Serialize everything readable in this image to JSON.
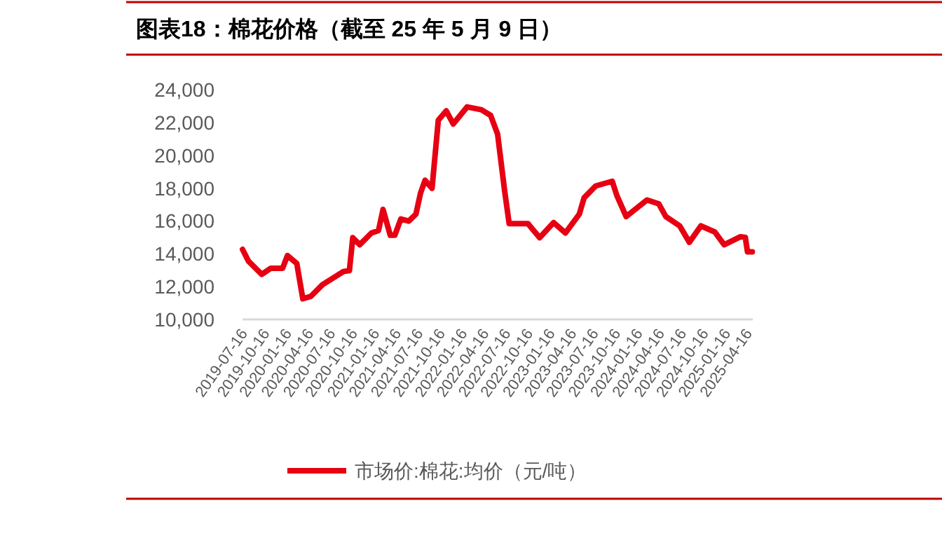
{
  "chart_data": {
    "type": "line",
    "title": "图表18：棉花价格（截至 25 年 5 月 9 日）",
    "x": [
      "2019-07-16",
      "2019-08-10",
      "2019-10-04",
      "2019-11-11",
      "2019-12-30",
      "2020-01-19",
      "2020-02-27",
      "2020-03-23",
      "2020-04-25",
      "2020-06-13",
      "2020-09-08",
      "2020-10-03",
      "2020-10-17",
      "2020-11-15",
      "2021-01-03",
      "2021-02-01",
      "2021-02-20",
      "2021-03-22",
      "2021-04-10",
      "2021-05-05",
      "2021-06-07",
      "2021-07-07",
      "2021-07-26",
      "2021-08-14",
      "2021-09-12",
      "2021-10-08",
      "2021-11-10",
      "2021-12-09",
      "2022-02-05",
      "2022-04-05",
      "2022-05-14",
      "2022-06-12",
      "2022-07-11",
      "2022-07-30",
      "2022-10-16",
      "2022-12-04",
      "2023-01-31",
      "2023-03-21",
      "2023-05-18",
      "2023-06-07",
      "2023-07-25",
      "2023-10-02",
      "2023-10-21",
      "2023-11-29",
      "2024-02-24",
      "2024-04-13",
      "2024-05-12",
      "2024-07-09",
      "2024-08-18",
      "2024-10-05",
      "2024-12-02",
      "2025-01-10",
      "2025-03-19",
      "2025-04-08",
      "2025-04-17",
      "2025-05-07"
    ],
    "series": [
      {
        "name": "市场价:棉花:均价（元/吨）",
        "color": "#e60012",
        "values": [
          14270,
          13550,
          12750,
          13120,
          13120,
          13890,
          13410,
          11260,
          11400,
          12120,
          12920,
          12980,
          14980,
          14550,
          15270,
          15410,
          16700,
          15130,
          15130,
          16120,
          15990,
          16420,
          17700,
          18480,
          17990,
          22140,
          22710,
          21910,
          22950,
          22780,
          22430,
          21280,
          17840,
          15840,
          15840,
          14980,
          15900,
          15270,
          16420,
          17410,
          18130,
          18420,
          17560,
          16270,
          17280,
          17040,
          16270,
          15700,
          14700,
          15700,
          15330,
          14550,
          15040,
          15000,
          14120,
          14120
        ]
      }
    ],
    "xlim": [
      "2019-07-16",
      "2025-05-09"
    ],
    "xticks": [
      "2019-07-16",
      "2019-10-16",
      "2020-01-16",
      "2020-04-16",
      "2020-07-16",
      "2020-10-16",
      "2021-01-16",
      "2021-04-16",
      "2021-07-16",
      "2021-10-16",
      "2022-01-16",
      "2022-04-16",
      "2022-07-16",
      "2022-10-16",
      "2023-01-16",
      "2023-04-16",
      "2023-07-16",
      "2023-10-16",
      "2024-01-16",
      "2024-04-16",
      "2024-07-16",
      "2024-10-16",
      "2025-01-16",
      "2025-04-16"
    ],
    "ylim": [
      10000,
      24000
    ],
    "yticks": [
      {
        "value": 10000,
        "label": "10,000"
      },
      {
        "value": 12000,
        "label": "12,000"
      },
      {
        "value": 14000,
        "label": "14,000"
      },
      {
        "value": 16000,
        "label": "16,000"
      },
      {
        "value": 18000,
        "label": "18,000"
      },
      {
        "value": 20000,
        "label": "20,000"
      },
      {
        "value": 22000,
        "label": "22,000"
      },
      {
        "value": 24000,
        "label": "24,000"
      }
    ],
    "legend": "bottom"
  }
}
